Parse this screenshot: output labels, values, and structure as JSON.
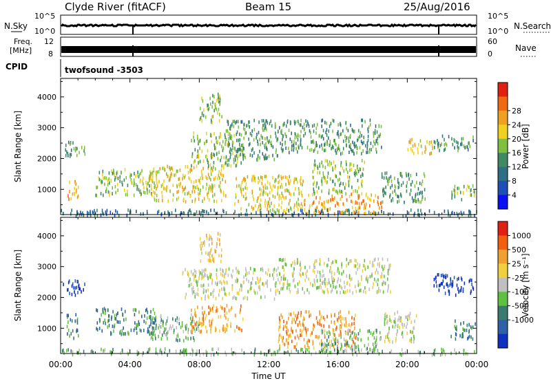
{
  "header": {
    "title": "Clyde River (fitACF)",
    "beam": "Beam 15",
    "date": "25/Aug/2016"
  },
  "status_panels": {
    "nsky_label": "N.Sky",
    "nsearch_label": "N.Search",
    "nsky_ticks": [
      "10^5",
      "10^0"
    ],
    "nsearch_ticks": [
      "10^5",
      "10^0"
    ],
    "freq_label_1": "Freq.",
    "freq_label_2": "[MHz]",
    "freq_ticks": [
      "12",
      "8"
    ],
    "nave_label": "Nave",
    "nave_ticks": [
      "60",
      "0"
    ],
    "cpid_label": "CPID",
    "cpid_value": "twofsound -3503"
  },
  "chart_data": [
    {
      "type": "heatmap",
      "name": "power",
      "ylabel": "Slant Range [km]",
      "yticks": [
        1000,
        2000,
        3000,
        4000
      ],
      "ylim": [
        180,
        4600
      ],
      "xlim": [
        0,
        24
      ],
      "colorbar": {
        "label": "Power [dB]",
        "ticks": [
          "4",
          "8",
          "12",
          "16",
          "20",
          "24",
          "28"
        ],
        "colors": [
          "#0a10f0",
          "#1d4fb8",
          "#2f6f86",
          "#3f8a64",
          "#80c040",
          "#f0d020",
          "#f0a020",
          "#f06a10",
          "#e02010"
        ]
      },
      "regions": [
        {
          "t0": 0.1,
          "t1": 1.4,
          "r0": 2100,
          "r1": 2600,
          "v": 3
        },
        {
          "t0": 0.3,
          "t1": 1.0,
          "r0": 700,
          "r1": 1300,
          "v": 6
        },
        {
          "t0": 2.0,
          "t1": 5.5,
          "r0": 850,
          "r1": 1700,
          "v": 4
        },
        {
          "t0": 5.0,
          "t1": 9.5,
          "r0": 650,
          "r1": 1800,
          "v": 5
        },
        {
          "t0": 7.5,
          "t1": 10.5,
          "r0": 1800,
          "r1": 2900,
          "v": 4
        },
        {
          "t0": 8.0,
          "t1": 9.3,
          "r0": 3200,
          "r1": 4150,
          "v": 4
        },
        {
          "t0": 9.5,
          "t1": 12.5,
          "r0": 2000,
          "r1": 3300,
          "v": 3
        },
        {
          "t0": 10.0,
          "t1": 14.0,
          "r0": 300,
          "r1": 1500,
          "v": 5
        },
        {
          "t0": 12.5,
          "t1": 18.5,
          "r0": 2200,
          "r1": 3300,
          "v": 3
        },
        {
          "t0": 14.0,
          "t1": 18.5,
          "r0": 250,
          "r1": 900,
          "v": 6
        },
        {
          "t0": 14.5,
          "t1": 17.5,
          "r0": 900,
          "r1": 2000,
          "v": 4
        },
        {
          "t0": 18.5,
          "t1": 21.0,
          "r0": 600,
          "r1": 1600,
          "v": 3
        },
        {
          "t0": 20.0,
          "t1": 21.5,
          "r0": 2200,
          "r1": 2700,
          "v": 5
        },
        {
          "t0": 21.5,
          "t1": 23.8,
          "r0": 2300,
          "r1": 2800,
          "v": 3
        },
        {
          "t0": 22.5,
          "t1": 23.9,
          "r0": 700,
          "r1": 1200,
          "v": 4
        },
        {
          "t0": 0.0,
          "t1": 24.0,
          "r0": 180,
          "r1": 380,
          "v": 2
        }
      ]
    },
    {
      "type": "heatmap",
      "name": "velocity",
      "ylabel": "Slant Range [km]",
      "xlabel": "Time UT",
      "xticks": [
        "00:00",
        "04:00",
        "08:00",
        "12:00",
        "16:00",
        "20:00",
        "00:00"
      ],
      "yticks": [
        1000,
        2000,
        3000,
        4000
      ],
      "ylim": [
        180,
        4600
      ],
      "xlim": [
        0,
        24
      ],
      "colorbar": {
        "label": "Velocity [m s⁻¹]",
        "ticks": [
          "1000",
          "500",
          "25",
          "-25",
          "-100",
          "-500",
          "-1000"
        ],
        "colors": [
          "#1030c0",
          "#2f60a8",
          "#3a7a70",
          "#60c040",
          "#c0c0c0",
          "#f0d040",
          "#f0a030",
          "#f06010",
          "#e02010"
        ]
      },
      "regions": [
        {
          "t0": 0.1,
          "t1": 1.4,
          "r0": 2100,
          "r1": 2600,
          "v": 0
        },
        {
          "t0": 0.3,
          "t1": 1.0,
          "r0": 700,
          "r1": 1500,
          "v": 2
        },
        {
          "t0": 2.0,
          "t1": 5.5,
          "r0": 850,
          "r1": 1700,
          "v": 2
        },
        {
          "t0": 5.0,
          "t1": 8.0,
          "r0": 650,
          "r1": 1500,
          "v": 3
        },
        {
          "t0": 7.5,
          "t1": 10.5,
          "r0": 900,
          "r1": 1800,
          "v": 6
        },
        {
          "t0": 8.0,
          "t1": 9.3,
          "r0": 3200,
          "r1": 4150,
          "v": 5
        },
        {
          "t0": 7.0,
          "t1": 12.5,
          "r0": 2000,
          "r1": 3000,
          "v": 4
        },
        {
          "t0": 12.5,
          "t1": 19.0,
          "r0": 2200,
          "r1": 3300,
          "v": 4
        },
        {
          "t0": 12.5,
          "t1": 17.0,
          "r0": 400,
          "r1": 1600,
          "v": 6
        },
        {
          "t0": 15.0,
          "t1": 18.5,
          "r0": 250,
          "r1": 1000,
          "v": 3
        },
        {
          "t0": 18.5,
          "t1": 20.5,
          "r0": 600,
          "r1": 1600,
          "v": 4
        },
        {
          "t0": 21.5,
          "t1": 23.8,
          "r0": 2100,
          "r1": 2800,
          "v": 0
        },
        {
          "t0": 22.5,
          "t1": 23.9,
          "r0": 700,
          "r1": 1300,
          "v": 2
        },
        {
          "t0": 0.0,
          "t1": 24.0,
          "r0": 180,
          "r1": 380,
          "v": 3
        }
      ]
    }
  ]
}
